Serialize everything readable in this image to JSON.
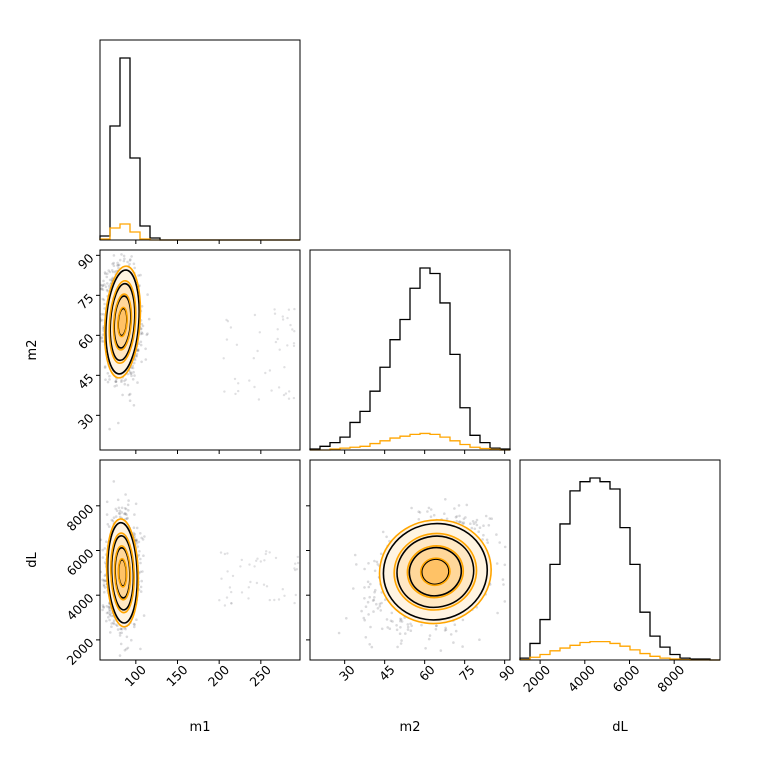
{
  "chart_data": {
    "type": "corner",
    "parameters": [
      "m1",
      "m2",
      "dL"
    ],
    "colors": {
      "primary": "#000000",
      "secondary": "#ffa500",
      "fill": "#ffdc9a",
      "points": "#55555e"
    },
    "ranges": {
      "m1": [
        57,
        297
      ],
      "m2": [
        17,
        92
      ],
      "dL": [
        1100,
        10050
      ]
    },
    "ticks": {
      "m1": [
        100,
        150,
        200,
        250
      ],
      "m2": [
        30,
        45,
        60,
        75,
        90
      ],
      "dL": [
        2000,
        4000,
        6000,
        8000
      ]
    },
    "tick_labels": {
      "m1": [
        "100",
        "150",
        "200",
        "250"
      ],
      "m2": [
        "30",
        "45",
        "60",
        "75",
        "90"
      ],
      "dL": [
        "2000",
        "4000",
        "6000",
        "8000"
      ]
    },
    "histograms": {
      "m1": {
        "bin_edges": [
          57,
          69,
          81,
          93,
          105,
          117,
          129,
          141,
          153,
          165,
          177,
          189,
          201,
          213,
          225,
          237,
          249,
          261,
          273,
          285,
          297
        ],
        "black": [
          0.02,
          0.57,
          0.91,
          0.41,
          0.07,
          0.01,
          0,
          0,
          0,
          0,
          0,
          0,
          0,
          0,
          0,
          0,
          0,
          0,
          0,
          0
        ],
        "orange": [
          0.005,
          0.06,
          0.08,
          0.04,
          0.005,
          0,
          0,
          0,
          0,
          0,
          0,
          0,
          0,
          0,
          0,
          0,
          0,
          0,
          0,
          0
        ]
      },
      "m2": {
        "bin_edges": [
          17,
          20.75,
          24.5,
          28.25,
          32,
          35.75,
          39.5,
          43.25,
          47,
          50.75,
          54.5,
          58.25,
          62,
          65.75,
          69.5,
          73.25,
          77,
          80.75,
          84.5,
          88.25,
          92
        ],
        "black": [
          0.005,
          0.02,
          0.04,
          0.07,
          0.15,
          0.21,
          0.32,
          0.45,
          0.6,
          0.71,
          0.88,
          0.99,
          0.96,
          0.8,
          0.52,
          0.23,
          0.08,
          0.04,
          0.01,
          0.005
        ],
        "orange": [
          0,
          0,
          0.005,
          0.01,
          0.015,
          0.02,
          0.035,
          0.05,
          0.065,
          0.075,
          0.085,
          0.09,
          0.085,
          0.07,
          0.05,
          0.03,
          0.015,
          0.008,
          0.003,
          0
        ]
      },
      "dL": {
        "bin_edges": [
          1100,
          1547.5,
          1995,
          2442.5,
          2890,
          3337.5,
          3785,
          4232.5,
          4680,
          5127.5,
          5575,
          6022.5,
          6470,
          6917.5,
          7365,
          7812.5,
          8260,
          8707.5,
          9155,
          9602.5,
          10050
        ],
        "black": [
          0.01,
          0.09,
          0.22,
          0.52,
          0.74,
          0.92,
          0.97,
          0.99,
          0.97,
          0.93,
          0.72,
          0.52,
          0.26,
          0.13,
          0.07,
          0.03,
          0.01,
          0.005,
          0.005,
          0
        ],
        "orange": [
          0.002,
          0.015,
          0.03,
          0.05,
          0.065,
          0.08,
          0.095,
          0.1,
          0.1,
          0.09,
          0.075,
          0.055,
          0.035,
          0.02,
          0.01,
          0.005,
          0.002,
          0,
          0,
          0
        ]
      }
    },
    "joint": {
      "m1_m2": {
        "mean": [
          84,
          65
        ],
        "std": [
          10,
          10
        ],
        "corr": -0.1
      },
      "m1_dL": {
        "mean": [
          84,
          5000
        ],
        "std": [
          9,
          1150
        ],
        "corr": 0.05
      },
      "m2_dL": {
        "mean": [
          64,
          5050
        ],
        "std": [
          10,
          1100
        ],
        "corr": 0.3
      }
    },
    "title": "",
    "legend": null,
    "grid": false
  }
}
